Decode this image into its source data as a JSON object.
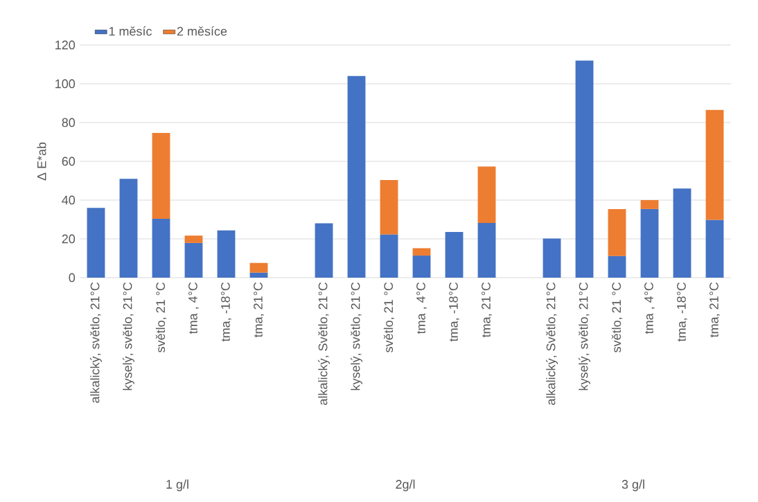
{
  "chart_data": {
    "type": "bar",
    "stacked": true,
    "ylabel": "Δ E*ab",
    "categories": [
      "alkalický, světlo, 21°C",
      "kyselý, světlo, 21°C",
      "světlo, 21 °C",
      "tma , 4°C",
      "tma, -18°C",
      "tma, 21°C",
      null,
      "alkalický, Světlo, 21°C",
      "kyselý, světlo, 21°C",
      "světlo, 21 °C",
      "tma , 4°C",
      "tma, -18°C",
      "tma, 21°C",
      null,
      "alkalický, Světlo, 21°C",
      "kyselý, světlo, 21°C",
      "světlo, 21 °C",
      "tma , 4°C",
      "tma, -18°C",
      "tma, 21°C"
    ],
    "series": [
      {
        "name": "1 měsíc",
        "color": "#4472c4",
        "values": [
          36,
          51,
          30.4,
          17.9,
          24.4,
          2.6,
          null,
          28,
          104,
          22.3,
          11.4,
          23.6,
          28.2,
          null,
          20.2,
          112,
          11.2,
          35.4,
          46,
          29.8
        ]
      },
      {
        "name": "2 měsíce",
        "color": "#ed7d31",
        "values": [
          null,
          null,
          44.2,
          3.8,
          null,
          5,
          null,
          null,
          null,
          28.1,
          3.8,
          null,
          29.1,
          null,
          null,
          null,
          24.2,
          4.6,
          null,
          56.7
        ]
      }
    ],
    "ylim": [
      0,
      120
    ],
    "yticks": [
      0,
      20,
      40,
      60,
      80,
      100,
      120
    ],
    "grid": "y",
    "legend": "top left",
    "annotations": [
      "1 g/l",
      "2g/l",
      "3 g/l"
    ]
  }
}
